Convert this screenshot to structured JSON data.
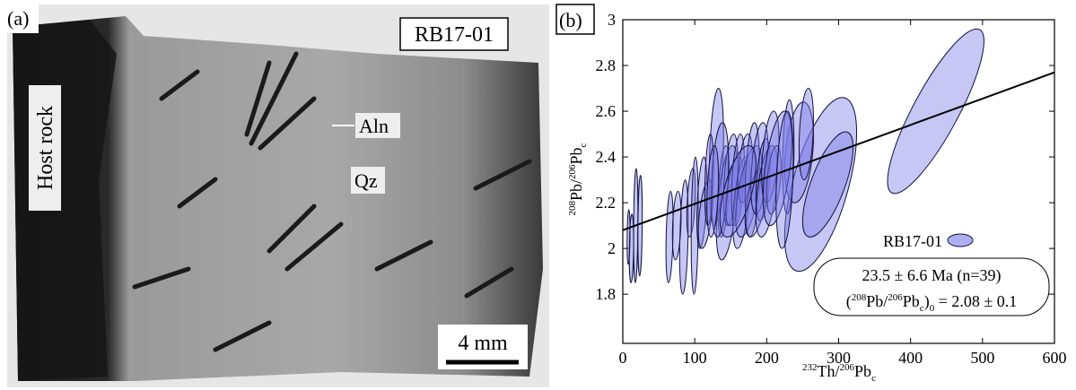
{
  "panel_a": {
    "label": "(a)",
    "sample": "RB17-01",
    "host_rock": "Host rock",
    "aln": "Aln",
    "qz": "Qz",
    "scale": "4 mm"
  },
  "chart_data": {
    "type": "ellipse",
    "panel_label": "(b)",
    "x_label": [
      "232",
      "Th/",
      "206",
      "Pb",
      "c"
    ],
    "y_label": [
      "208",
      "Pb/",
      "206",
      "Pb",
      "c"
    ],
    "xlim": [
      0,
      600
    ],
    "xticks": [
      0,
      100,
      200,
      300,
      400,
      500,
      600
    ],
    "ylim": [
      1.585,
      3
    ],
    "yticks": [
      1.8,
      2,
      2.2,
      2.4,
      2.6,
      2.8,
      3
    ],
    "series": [
      {
        "name": "RB17-01",
        "color": "#7a7ae6",
        "x": [
          435,
          275,
          285,
          245,
          230,
          130,
          85,
          12,
          18,
          24,
          8,
          65,
          75,
          95,
          100,
          110,
          115,
          120,
          140,
          145,
          150,
          155,
          160,
          165,
          170,
          175,
          180,
          185,
          190,
          195,
          200,
          205,
          210,
          215,
          135,
          125,
          160,
          225,
          255
        ],
        "y": [
          2.6,
          2.28,
          2.28,
          2.42,
          2.4,
          2.4,
          2.05,
          2.0,
          2.1,
          2.1,
          2.05,
          2.05,
          2.1,
          2.2,
          2.1,
          2.2,
          2.15,
          2.3,
          2.25,
          2.2,
          2.3,
          2.25,
          2.3,
          2.2,
          2.35,
          2.25,
          2.3,
          2.2,
          2.35,
          2.3,
          2.25,
          2.4,
          2.3,
          2.35,
          2.3,
          2.25,
          2.25,
          2.3,
          2.5
        ],
        "x_err": [
          67,
          50,
          35,
          20,
          8,
          10,
          6,
          3,
          3,
          3,
          2,
          5,
          6,
          6,
          5,
          7,
          10,
          6,
          8,
          15,
          10,
          12,
          9,
          12,
          10,
          18,
          10,
          15,
          12,
          10,
          15,
          12,
          10,
          20,
          12,
          8,
          25,
          12,
          10
        ],
        "y_err": [
          0.36,
          0.38,
          0.23,
          0.22,
          0.25,
          0.3,
          0.25,
          0.15,
          0.25,
          0.22,
          0.12,
          0.2,
          0.15,
          0.15,
          0.3,
          0.2,
          0.15,
          0.2,
          0.2,
          0.25,
          0.2,
          0.15,
          0.2,
          0.2,
          0.15,
          0.2,
          0.25,
          0.15,
          0.2,
          0.18,
          0.2,
          0.2,
          0.15,
          0.25,
          0.25,
          0.2,
          0.2,
          0.3,
          0.2
        ],
        "rho": [
          0.85,
          0.6,
          0.7,
          0.3,
          0.2,
          0.3,
          0.3,
          0.2,
          0.2,
          0.2,
          0.2,
          0.3,
          0.3,
          0.4,
          0.2,
          0.4,
          0.5,
          0.3,
          0.4,
          0.5,
          0.4,
          0.5,
          0.4,
          0.5,
          0.4,
          0.6,
          0.3,
          0.5,
          0.4,
          0.4,
          0.5,
          0.4,
          0.4,
          0.5,
          0.3,
          0.3,
          0.6,
          0.3,
          0.3
        ]
      }
    ],
    "fit_line": {
      "x": [
        0,
        600
      ],
      "y": [
        2.08,
        2.77
      ]
    },
    "annotation": [
      "23.5 ± 6.6 Ma (n=39)"
    ],
    "annotation_2": [
      "(",
      "208",
      "Pb/",
      "206",
      "Pb",
      "c",
      ")",
      "0",
      " = 2.08 ± 0.1"
    ]
  }
}
